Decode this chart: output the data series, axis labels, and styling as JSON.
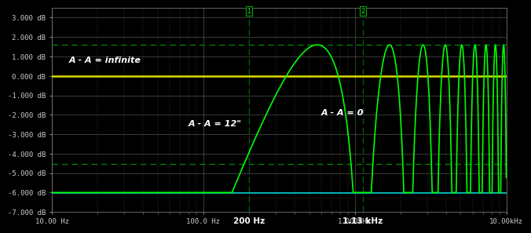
{
  "background_color": "#000000",
  "plot_bg_color": "#000000",
  "grid_color": "#666666",
  "text_color": "#cccccc",
  "line_color": "#00ff00",
  "hline_yellow": 0.0,
  "hline_yellow_color": "#dddd00",
  "hline_cyan": -6.02,
  "hline_cyan_color": "#00cccc",
  "hline_dashed1": 1.6,
  "hline_dashed2": -4.55,
  "hline_dashed_color": "#008800",
  "vline1_x": 200,
  "vline2_x": 1130,
  "vline_color": "#006600",
  "marker1_label": "1",
  "marker2_label": "2",
  "label_infinite": "A - A = infinite",
  "label_12inch": "A - A = 12\"",
  "label_0": "A - A = 0",
  "label_200hz": "200 Hz",
  "label_113khz": "1.13 kHz",
  "f_comb": 1130,
  "xlim": [
    10,
    10000
  ],
  "ylim": [
    -7.0,
    3.5
  ],
  "yticks": [
    -7,
    -6,
    -5,
    -4,
    -3,
    -2,
    -1,
    0,
    1,
    2,
    3
  ],
  "xtick_positions": [
    10,
    100,
    1000,
    10000
  ],
  "xtick_labels": [
    "10.00 Hz",
    "100.0 Hz",
    "1.000kHz",
    "10.00kHz"
  ]
}
